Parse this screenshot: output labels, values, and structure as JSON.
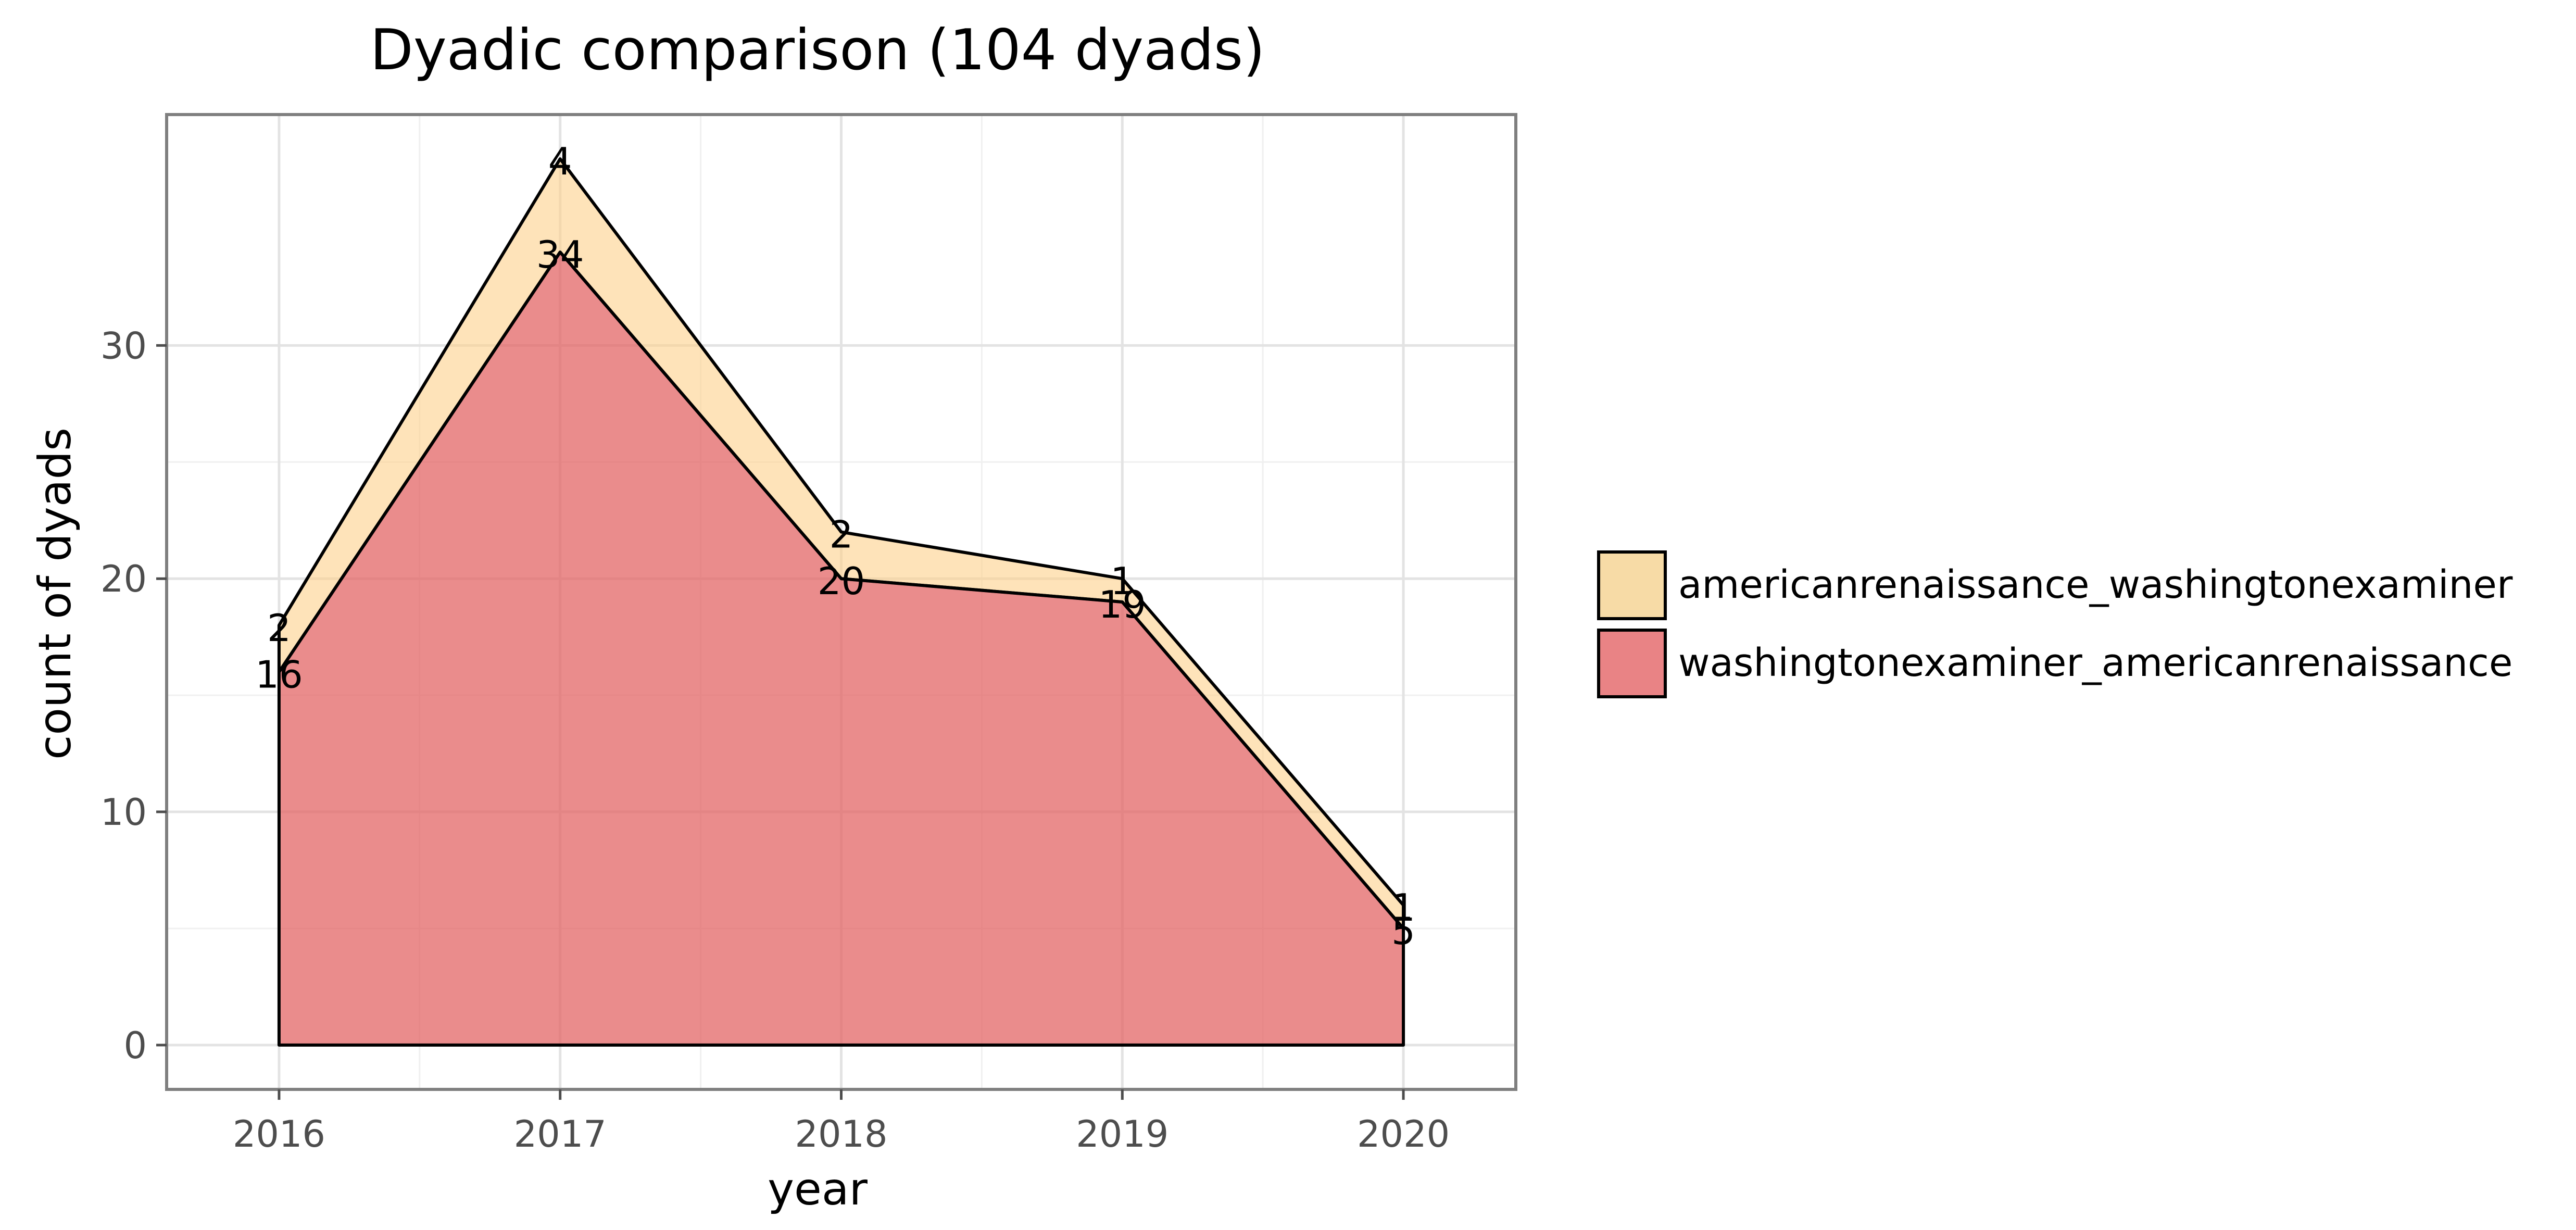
{
  "chart_data": {
    "type": "area",
    "stacked": true,
    "title": "Dyadic comparison (104 dyads)",
    "xlabel": "year",
    "ylabel": "count of dyads",
    "x": [
      2016,
      2017,
      2018,
      2019,
      2020
    ],
    "xlim": [
      2015.6,
      2020.4
    ],
    "ylim": [
      -1.9,
      39.9
    ],
    "x_ticks": [
      "2016",
      "2017",
      "2018",
      "2019",
      "2020"
    ],
    "y_ticks": [
      0,
      10,
      20,
      30
    ],
    "grid": true,
    "legend_position": "right",
    "series": [
      {
        "name": "washingtonexaminer_americanrenaissance",
        "values": [
          16,
          34,
          20,
          19,
          5
        ],
        "labels": [
          "16",
          "34",
          "20",
          "19",
          "5"
        ],
        "color": "#e36666"
      },
      {
        "name": "americanrenaissance_washingtonexaminer",
        "values": [
          2,
          4,
          2,
          1,
          1
        ],
        "labels": [
          "2",
          "4",
          "2",
          "1",
          "1"
        ],
        "color": "#fdd08a"
      }
    ],
    "legend": [
      {
        "name": "americanrenaissance_washingtonexaminer",
        "color": "#f7dba6"
      },
      {
        "name": "washingtonexaminer_americanrenaissance",
        "color": "#e98385"
      }
    ]
  }
}
